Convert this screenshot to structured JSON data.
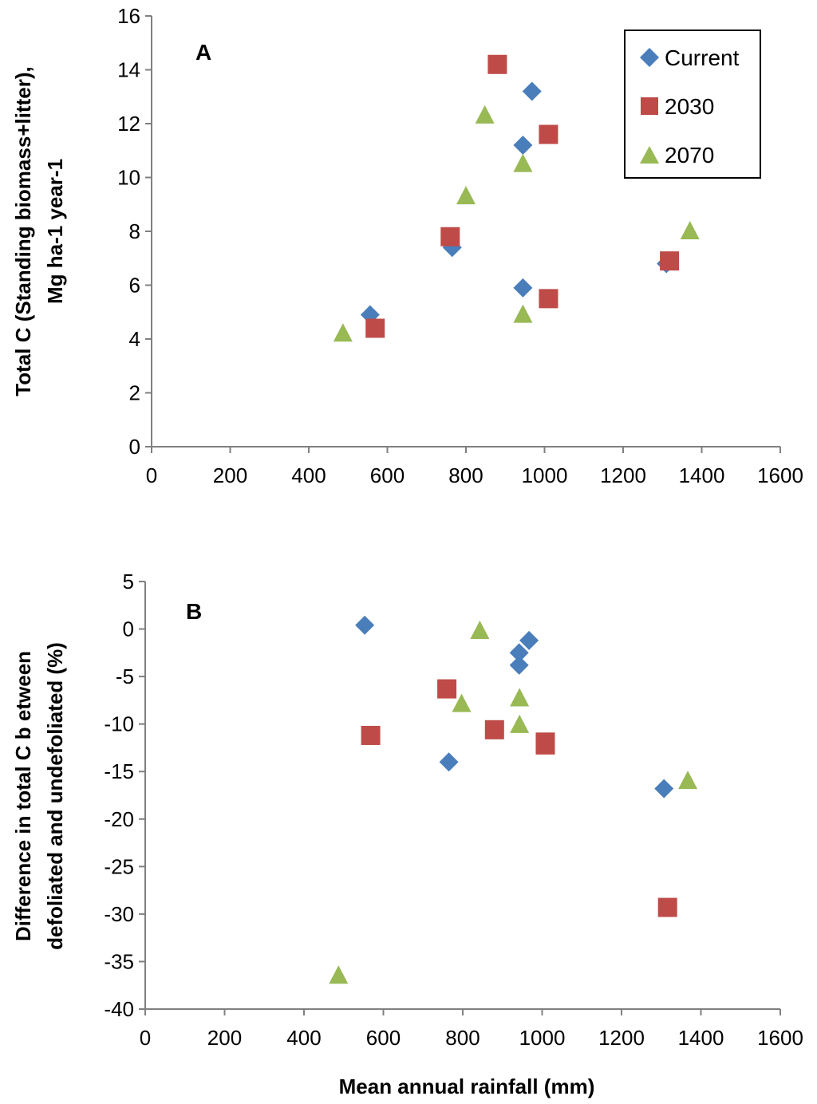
{
  "chart_data": [
    {
      "type": "scatter",
      "panel_label": "A",
      "title": "",
      "xlabel": "",
      "ylabel_lines": [
        "Total C (Standing biomass+litter),",
        "Mg ha-1 year-1"
      ],
      "xlim": [
        0,
        1600
      ],
      "ylim": [
        0,
        16
      ],
      "xticks": [
        "0",
        "200",
        "400",
        "600",
        "800",
        "1000",
        "1200",
        "1400",
        "1600"
      ],
      "yticks": [
        "0",
        "2",
        "4",
        "6",
        "8",
        "10",
        "12",
        "14",
        "16"
      ],
      "grid": false,
      "legend": {
        "placement": "top-right",
        "entries": [
          "Current",
          "2030",
          "2070"
        ]
      },
      "series": [
        {
          "name": "Current",
          "marker": "diamond",
          "color": "#4a7ebb",
          "points": [
            [
              556,
              4.9
            ],
            [
              765,
              7.4
            ],
            [
              945,
              5.9
            ],
            [
              945,
              11.2
            ],
            [
              968,
              13.2
            ],
            [
              1310,
              6.8
            ]
          ]
        },
        {
          "name": "2030",
          "marker": "square",
          "color": "#be4b48",
          "points": [
            [
              569,
              4.4
            ],
            [
              760,
              7.8
            ],
            [
              880,
              14.2
            ],
            [
              1010,
              11.6
            ],
            [
              1010,
              5.5
            ],
            [
              1318,
              6.9
            ]
          ]
        },
        {
          "name": "2070",
          "marker": "triangle",
          "color": "#98b954",
          "points": [
            [
              487,
              4.2
            ],
            [
              800,
              9.3
            ],
            [
              848,
              12.3
            ],
            [
              945,
              10.5
            ],
            [
              945,
              4.9
            ],
            [
              1370,
              8.0
            ]
          ]
        }
      ]
    },
    {
      "type": "scatter",
      "panel_label": "B",
      "title": "",
      "xlabel": "Mean annual rainfall (mm)",
      "ylabel_lines": [
        "Difference in total C b etween",
        "defoliated and undefoliated (%)"
      ],
      "xlim": [
        0,
        1600
      ],
      "ylim": [
        -40,
        5
      ],
      "xticks": [
        "0",
        "200",
        "400",
        "600",
        "800",
        "1000",
        "1200",
        "1400",
        "1600"
      ],
      "yticks": [
        "-40",
        "-35",
        "-30",
        "-25",
        "-20",
        "-15",
        "-10",
        "-5",
        "0",
        "5"
      ],
      "grid": false,
      "series": [
        {
          "name": "Current",
          "marker": "diamond",
          "color": "#4a7ebb",
          "points": [
            [
              553,
              0.4
            ],
            [
              765,
              -14.0
            ],
            [
              942,
              -2.5
            ],
            [
              942,
              -3.8
            ],
            [
              967,
              -1.2
            ],
            [
              1307,
              -16.8
            ]
          ]
        },
        {
          "name": "2030",
          "marker": "square",
          "color": "#be4b48",
          "points": [
            [
              568,
              -11.2
            ],
            [
              760,
              -6.3
            ],
            [
              880,
              -10.6
            ],
            [
              1008,
              -11.9
            ],
            [
              1008,
              -12.2
            ],
            [
              1316,
              -29.3
            ]
          ]
        },
        {
          "name": "2070",
          "marker": "triangle",
          "color": "#98b954",
          "points": [
            [
              487,
              -36.5
            ],
            [
              797,
              -7.9
            ],
            [
              843,
              -0.2
            ],
            [
              943,
              -7.3
            ],
            [
              943,
              -10.1
            ],
            [
              1367,
              -16.0
            ]
          ]
        }
      ]
    }
  ]
}
